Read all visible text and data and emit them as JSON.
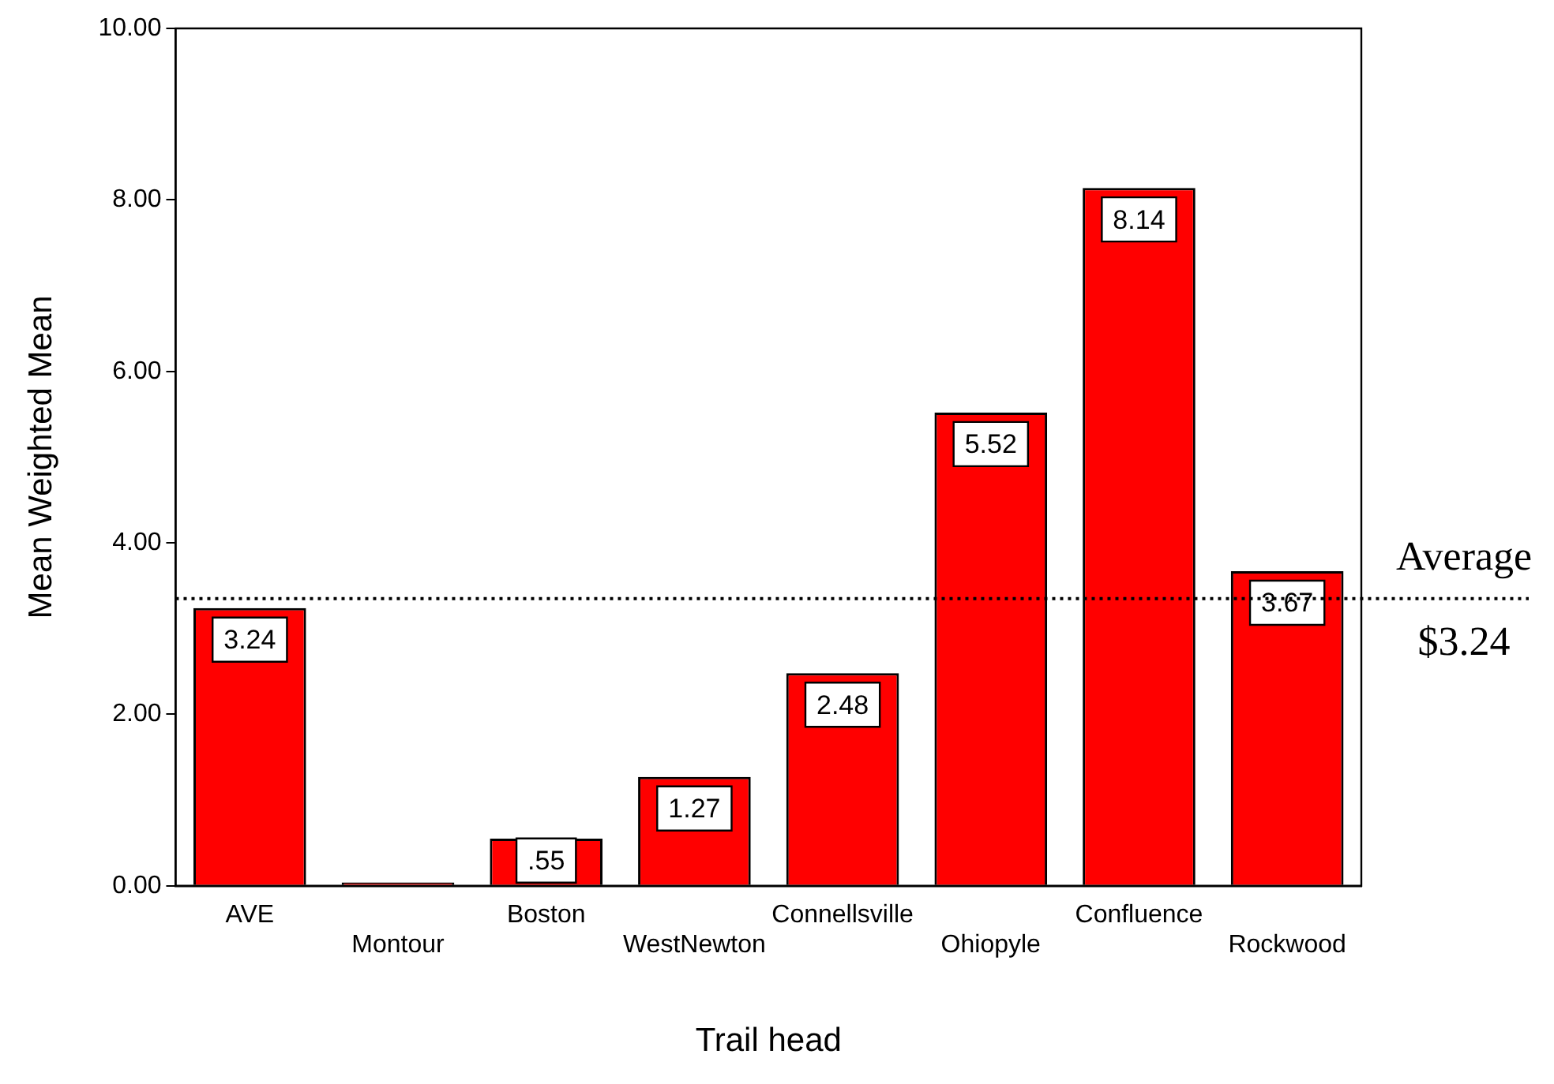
{
  "chart_data": {
    "type": "bar",
    "xlabel": "Trail head",
    "ylabel": "Mean Weighted Mean",
    "categories": [
      "AVE",
      "Montour",
      "Boston",
      "WestNewton",
      "Connellsville",
      "Ohiopyle",
      "Confluence",
      "Rockwood"
    ],
    "values": [
      3.24,
      0.04,
      0.55,
      1.27,
      2.48,
      5.52,
      8.14,
      3.67
    ],
    "value_labels": [
      "3.24",
      null,
      ".55",
      "1.27",
      "2.48",
      "5.52",
      "8.14",
      "3.67"
    ],
    "color": "#ff0000",
    "ylim": [
      0,
      10
    ],
    "yticks": [
      {
        "value": 0,
        "label": "0.00"
      },
      {
        "value": 2,
        "label": "2.00"
      },
      {
        "value": 4,
        "label": "4.00"
      },
      {
        "value": 6,
        "label": "6.00"
      },
      {
        "value": 8,
        "label": "8.00"
      },
      {
        "value": 10,
        "label": "10.00"
      }
    ],
    "ref_lines": [
      {
        "axis": "y",
        "value": 3.35,
        "label": "Average $3.24",
        "line_style": "dotted",
        "color": "#000000"
      }
    ],
    "grid": false,
    "legend": false
  }
}
